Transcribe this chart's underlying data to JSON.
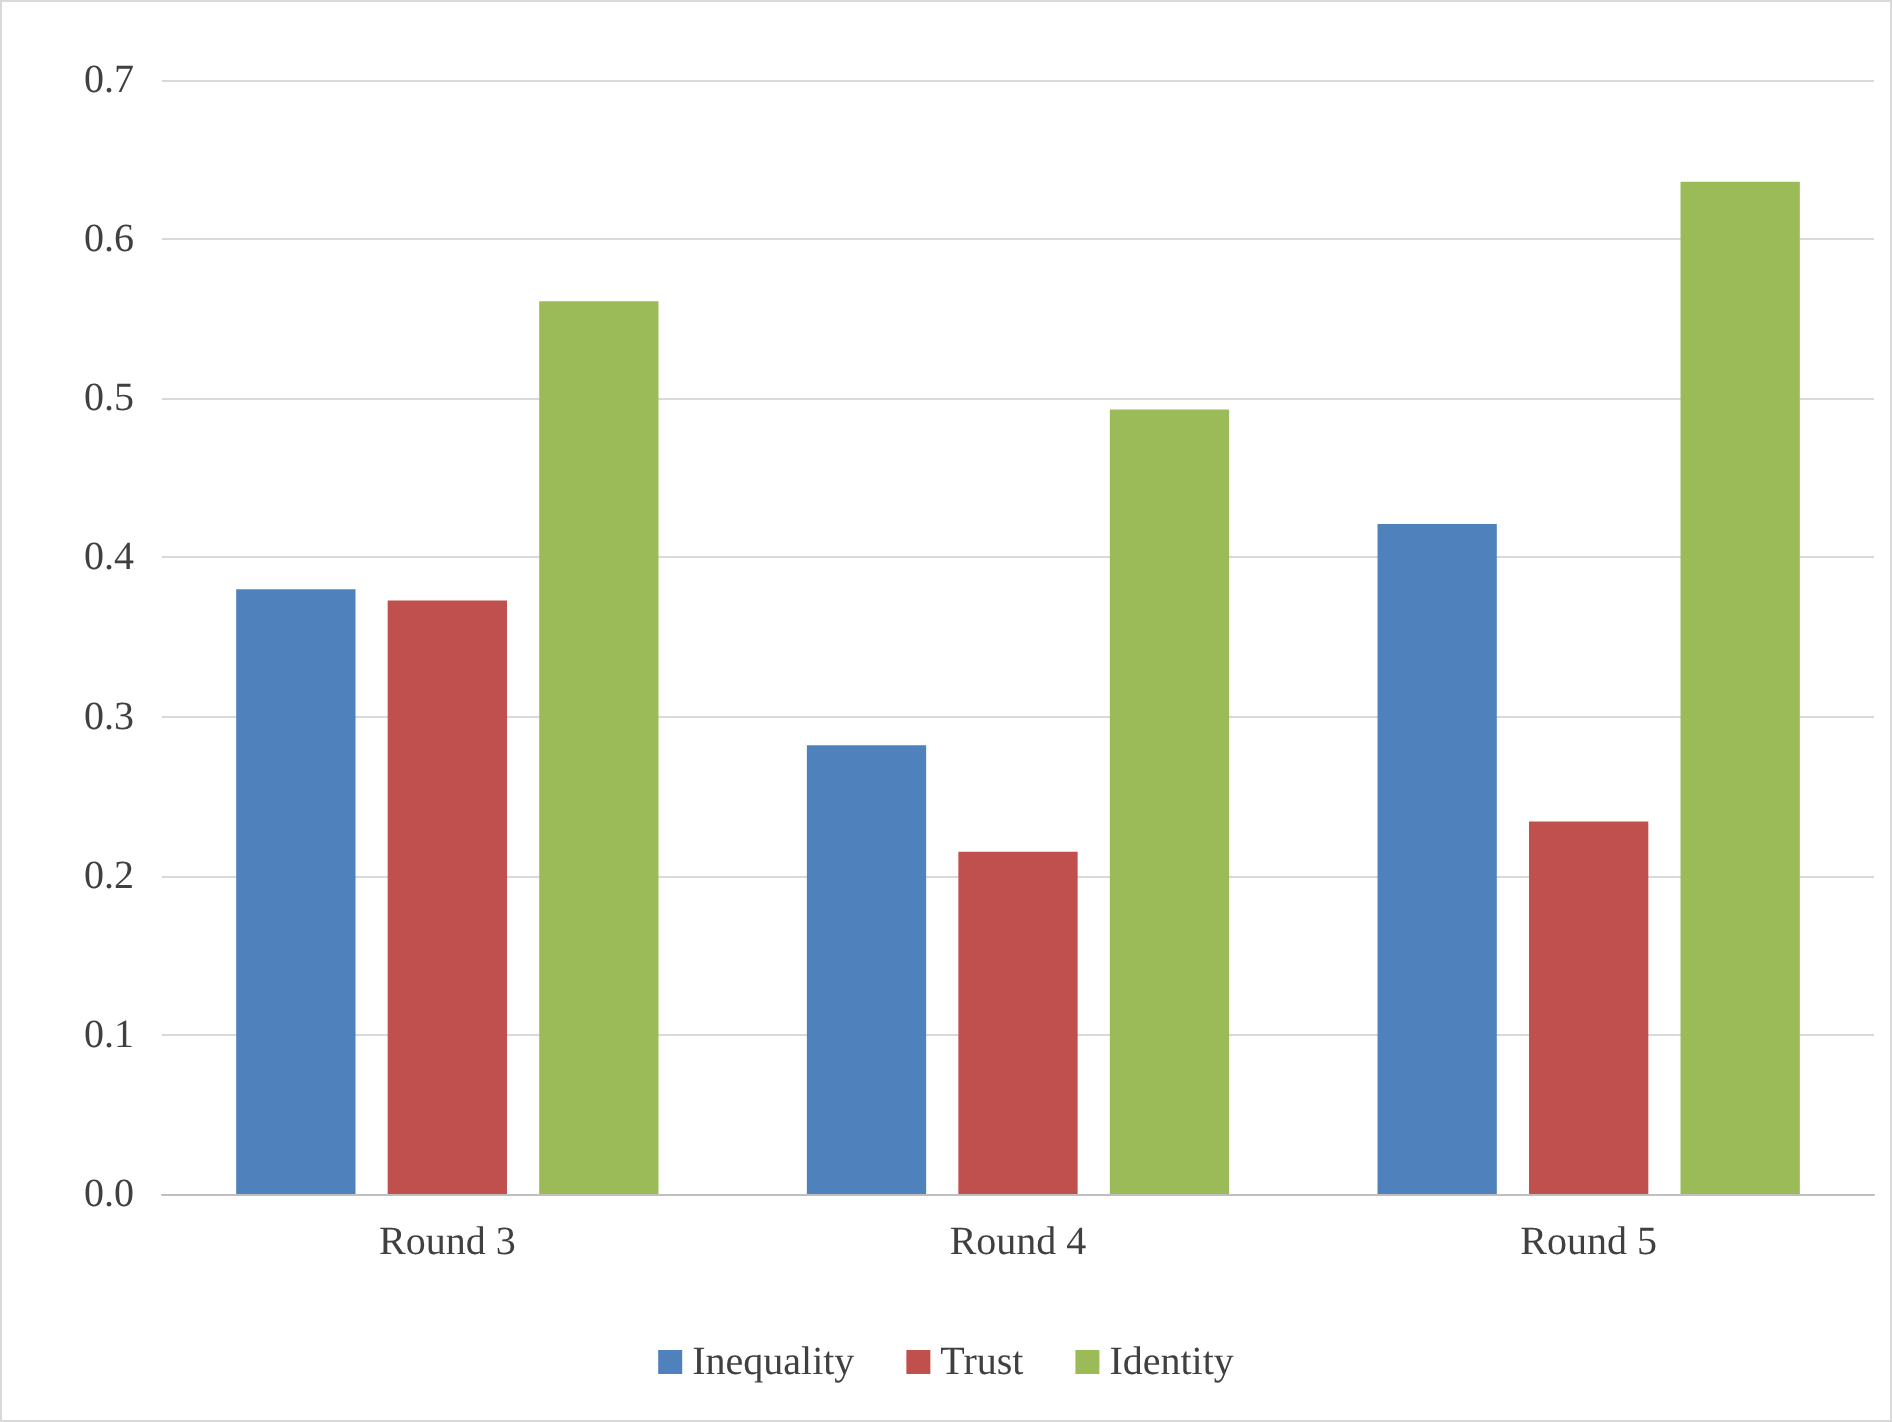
{
  "chart_data": {
    "type": "bar",
    "categories": [
      "Round 3",
      "Round 4",
      "Round 5"
    ],
    "series": [
      {
        "name": "Inequality",
        "color": "#4f81bd",
        "values": [
          0.38,
          0.282,
          0.421
        ]
      },
      {
        "name": "Trust",
        "color": "#c0504d",
        "values": [
          0.373,
          0.215,
          0.234
        ]
      },
      {
        "name": "Identity",
        "color": "#9bbb59",
        "values": [
          0.561,
          0.493,
          0.636
        ]
      }
    ],
    "ylim": [
      0,
      0.7
    ],
    "yticks": [
      {
        "value": 0,
        "label": "0.0"
      },
      0.1,
      0.2,
      0.3,
      0.4,
      0.5,
      0.6,
      0.7
    ],
    "grid": "y",
    "legend": "bottom"
  }
}
